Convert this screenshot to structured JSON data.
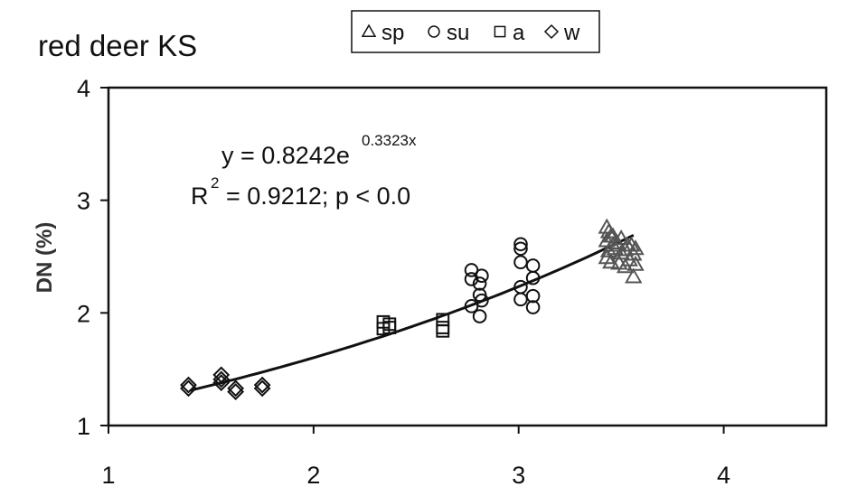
{
  "chart_data": {
    "type": "scatter",
    "title": "red deer KS",
    "xlabel": "",
    "ylabel": "DN (%)",
    "xlim": [
      1,
      4.5
    ],
    "ylim": [
      1,
      4
    ],
    "x_ticks": [
      "1",
      "2",
      "3",
      "4"
    ],
    "y_ticks": [
      "1",
      "2",
      "3",
      "4"
    ],
    "grid": false,
    "legend_position": "top-center",
    "legend": [
      {
        "marker": "triangle",
        "label": "sp"
      },
      {
        "marker": "circle",
        "label": "su"
      },
      {
        "marker": "square",
        "label": "a"
      },
      {
        "marker": "diamond",
        "label": "w"
      }
    ],
    "annotation": {
      "equation_main": "y = 0.8242e",
      "equation_exp": "0.3323x",
      "r2_prefix": "R",
      "r2_sup": "2",
      "r2_rest": " = 0.9212; p < 0.0"
    },
    "trendline": {
      "a": 0.8242,
      "b": 0.3323,
      "x_range": [
        1.4,
        3.56
      ]
    },
    "series": [
      {
        "name": "sp",
        "marker": "triangle",
        "points": [
          [
            3.43,
            2.76
          ],
          [
            3.44,
            2.72
          ],
          [
            3.45,
            2.68
          ],
          [
            3.43,
            2.64
          ],
          [
            3.46,
            2.6
          ],
          [
            3.44,
            2.55
          ],
          [
            3.43,
            2.49
          ],
          [
            3.47,
            2.57
          ],
          [
            3.5,
            2.53
          ],
          [
            3.52,
            2.56
          ],
          [
            3.55,
            2.6
          ],
          [
            3.57,
            2.57
          ],
          [
            3.56,
            2.52
          ],
          [
            3.54,
            2.47
          ],
          [
            3.57,
            2.43
          ],
          [
            3.49,
            2.44
          ],
          [
            3.45,
            2.45
          ],
          [
            3.52,
            2.41
          ],
          [
            3.56,
            2.32
          ],
          [
            3.48,
            2.62
          ],
          [
            3.5,
            2.66
          ],
          [
            3.53,
            2.6
          ],
          [
            3.46,
            2.68
          ]
        ]
      },
      {
        "name": "su",
        "marker": "circle",
        "points": [
          [
            2.77,
            2.38
          ],
          [
            2.82,
            2.33
          ],
          [
            2.77,
            2.3
          ],
          [
            2.81,
            2.26
          ],
          [
            2.81,
            2.16
          ],
          [
            2.82,
            2.11
          ],
          [
            2.77,
            2.06
          ],
          [
            2.81,
            1.97
          ],
          [
            3.01,
            2.61
          ],
          [
            3.01,
            2.57
          ],
          [
            3.01,
            2.45
          ],
          [
            3.07,
            2.42
          ],
          [
            3.01,
            2.23
          ],
          [
            3.07,
            2.31
          ],
          [
            3.07,
            2.15
          ],
          [
            3.01,
            2.12
          ],
          [
            3.07,
            2.05
          ]
        ]
      },
      {
        "name": "a",
        "marker": "square",
        "points": [
          [
            2.34,
            1.92
          ],
          [
            2.37,
            1.9
          ],
          [
            2.34,
            1.86
          ],
          [
            2.37,
            1.87
          ],
          [
            2.63,
            1.94
          ],
          [
            2.63,
            1.87
          ],
          [
            2.63,
            1.84
          ]
        ]
      },
      {
        "name": "w",
        "marker": "diamond",
        "points": [
          [
            1.39,
            1.36
          ],
          [
            1.39,
            1.33
          ],
          [
            1.55,
            1.45
          ],
          [
            1.55,
            1.41
          ],
          [
            1.55,
            1.38
          ],
          [
            1.62,
            1.33
          ],
          [
            1.62,
            1.3
          ],
          [
            1.75,
            1.36
          ],
          [
            1.75,
            1.33
          ]
        ]
      }
    ]
  }
}
